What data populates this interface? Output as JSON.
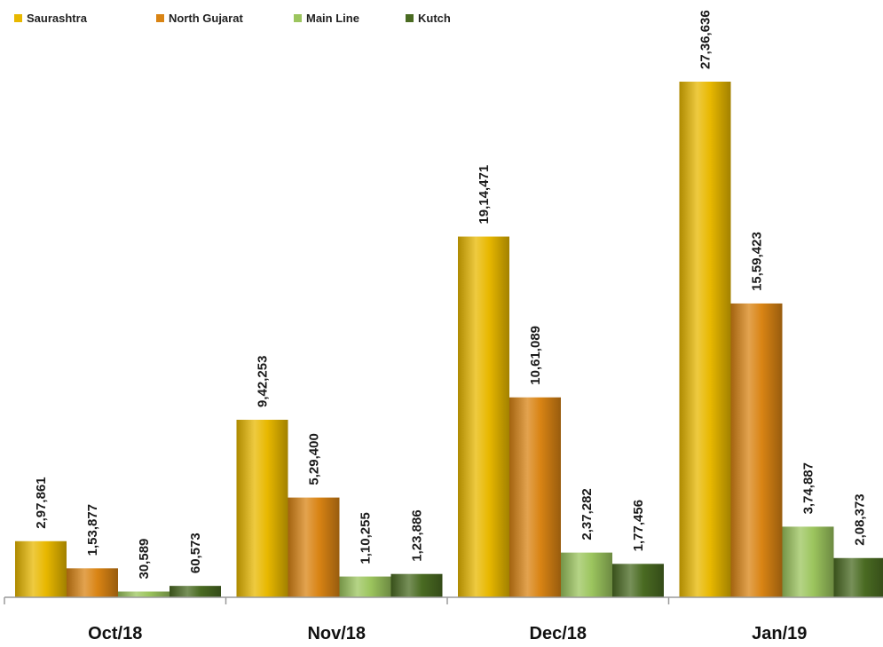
{
  "chart_data": {
    "type": "bar",
    "title": "",
    "xlabel": "",
    "ylabel": "",
    "categories": [
      "Oct/18",
      "Nov/18",
      "Dec/18",
      "Jan/19"
    ],
    "series": [
      {
        "name": "Saurashtra",
        "color": "#E8B800",
        "values": [
          297861,
          942253,
          1914471,
          2736636
        ],
        "labels": [
          "2,97,861",
          "9,42,253",
          "19,14,471",
          "27,36,636"
        ]
      },
      {
        "name": "North Gujarat",
        "color": "#D98414",
        "values": [
          153877,
          529400,
          1061089,
          1559423
        ],
        "labels": [
          "1,53,877",
          "5,29,400",
          "10,61,089",
          "15,59,423"
        ]
      },
      {
        "name": "Main Line",
        "color": "#9CC55E",
        "values": [
          30589,
          110255,
          237282,
          374887
        ],
        "labels": [
          "30,589",
          "1,10,255",
          "2,37,282",
          "3,74,887"
        ]
      },
      {
        "name": "Kutch",
        "color": "#4A6B22",
        "values": [
          60573,
          123886,
          177456,
          208373
        ],
        "labels": [
          "60,573",
          "1,23,886",
          "1,77,456",
          "2,08,373"
        ]
      }
    ],
    "ylim": [
      0,
      2736636
    ],
    "grid": false,
    "legend": "top-left"
  }
}
